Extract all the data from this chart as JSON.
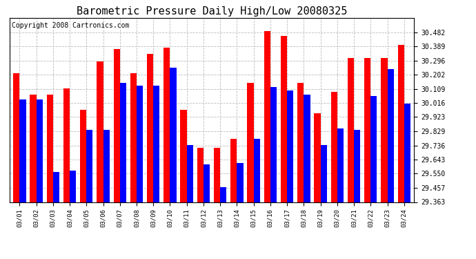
{
  "title": "Barometric Pressure Daily High/Low 20080325",
  "copyright": "Copyright 2008 Cartronics.com",
  "dates": [
    "03/01",
    "03/02",
    "03/03",
    "03/04",
    "03/05",
    "03/06",
    "03/07",
    "03/08",
    "03/09",
    "03/10",
    "03/11",
    "03/12",
    "03/13",
    "03/14",
    "03/15",
    "03/16",
    "03/17",
    "03/18",
    "03/19",
    "03/20",
    "03/21",
    "03/22",
    "03/23",
    "03/24"
  ],
  "highs": [
    30.21,
    30.07,
    30.07,
    30.11,
    29.97,
    30.29,
    30.37,
    30.21,
    30.34,
    30.38,
    29.97,
    29.72,
    29.72,
    29.78,
    30.15,
    30.49,
    30.46,
    30.15,
    29.95,
    30.09,
    30.31,
    30.31,
    30.31,
    30.4
  ],
  "lows": [
    30.04,
    30.04,
    29.56,
    29.57,
    29.84,
    29.84,
    30.15,
    30.13,
    30.13,
    30.25,
    29.74,
    29.61,
    29.46,
    29.62,
    29.78,
    30.12,
    30.1,
    30.07,
    29.74,
    29.85,
    29.84,
    30.06,
    30.24,
    30.01
  ],
  "ylim_min": 29.363,
  "ylim_max": 30.575,
  "yticks": [
    29.363,
    29.457,
    29.55,
    29.643,
    29.736,
    29.829,
    29.923,
    30.016,
    30.109,
    30.202,
    30.296,
    30.389,
    30.482
  ],
  "bar_width": 0.38,
  "high_color": "#ff0000",
  "low_color": "#0000ff",
  "bg_color": "#ffffff",
  "plot_bg_color": "#ffffff",
  "grid_color": "#bbbbbb",
  "title_fontsize": 11,
  "copyright_fontsize": 7
}
